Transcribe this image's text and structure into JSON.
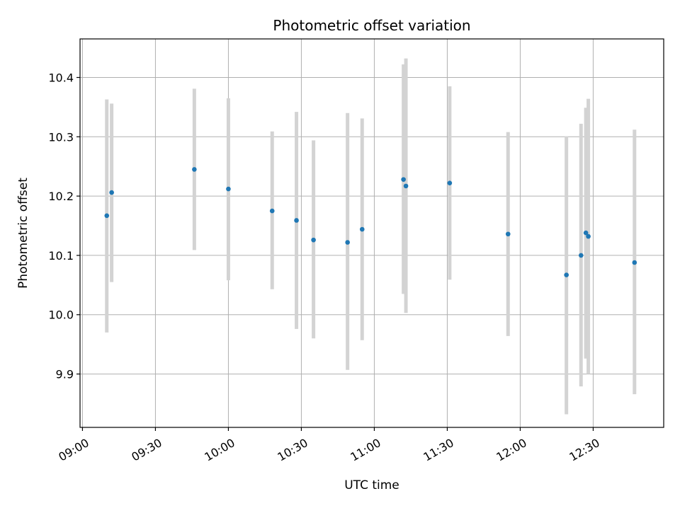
{
  "chart_data": {
    "type": "scatter",
    "title": "Photometric offset variation",
    "xlabel": "UTC time",
    "ylabel": "Photometric offset",
    "xlim": [
      "08:59",
      "12:59"
    ],
    "ylim": [
      9.81,
      10.465
    ],
    "x_ticks": [
      "09:00",
      "09:30",
      "10:00",
      "10:30",
      "11:00",
      "11:30",
      "12:00",
      "12:30"
    ],
    "y_ticks": [
      "9.9",
      "10.0",
      "10.1",
      "10.2",
      "10.3",
      "10.4"
    ],
    "grid": true,
    "marker_color": "#1f77b4",
    "errorbar_color": "#d3d3d3",
    "points": [
      {
        "time": "09:10",
        "value": 10.167,
        "low": 9.97,
        "high": 10.363
      },
      {
        "time": "09:12",
        "value": 10.206,
        "low": 10.055,
        "high": 10.356
      },
      {
        "time": "09:46",
        "value": 10.245,
        "low": 10.109,
        "high": 10.381
      },
      {
        "time": "10:00",
        "value": 10.212,
        "low": 10.058,
        "high": 10.365
      },
      {
        "time": "10:18",
        "value": 10.175,
        "low": 10.043,
        "high": 10.309
      },
      {
        "time": "10:28",
        "value": 10.159,
        "low": 9.976,
        "high": 10.342
      },
      {
        "time": "10:35",
        "value": 10.126,
        "low": 9.96,
        "high": 10.294
      },
      {
        "time": "10:49",
        "value": 10.122,
        "low": 9.907,
        "high": 10.34
      },
      {
        "time": "10:55",
        "value": 10.144,
        "low": 9.957,
        "high": 10.331
      },
      {
        "time": "11:12",
        "value": 10.228,
        "low": 10.035,
        "high": 10.422
      },
      {
        "time": "11:13",
        "value": 10.217,
        "low": 10.003,
        "high": 10.432
      },
      {
        "time": "11:31",
        "value": 10.222,
        "low": 10.059,
        "high": 10.385
      },
      {
        "time": "11:55",
        "value": 10.136,
        "low": 9.964,
        "high": 10.308
      },
      {
        "time": "12:19",
        "value": 10.067,
        "low": 9.832,
        "high": 10.301
      },
      {
        "time": "12:25",
        "value": 10.1,
        "low": 9.879,
        "high": 10.322
      },
      {
        "time": "12:27",
        "value": 10.138,
        "low": 9.926,
        "high": 10.349
      },
      {
        "time": "12:28",
        "value": 10.132,
        "low": 9.9,
        "high": 10.364
      },
      {
        "time": "12:47",
        "value": 10.088,
        "low": 9.866,
        "high": 10.312
      }
    ]
  }
}
